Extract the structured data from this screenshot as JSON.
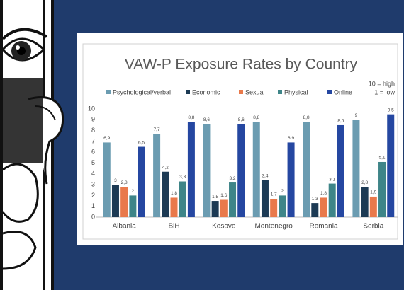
{
  "chart_data": {
    "type": "bar",
    "title": "VAW-P Exposure Rates by Country",
    "annotations": [
      "10 = high",
      "1 = low"
    ],
    "categories": [
      "Albania",
      "BiH",
      "Kosovo",
      "Montenegro",
      "Romania",
      "Serbia"
    ],
    "series": [
      {
        "name": "Psychological/verbal",
        "color": "#6b9cb1",
        "values": [
          6.9,
          7.7,
          8.6,
          8.8,
          8.8,
          9
        ],
        "value_labels": [
          "6,9",
          "7,7",
          "8,6",
          "8,8",
          "8,8",
          "9"
        ]
      },
      {
        "name": "Economic",
        "color": "#1c3a54",
        "values": [
          3,
          4.2,
          1.5,
          3.4,
          1.3,
          2.8
        ],
        "value_labels": [
          "3",
          "4,2",
          "1,5",
          "3,4",
          "1,3",
          "2,8"
        ]
      },
      {
        "name": "Sexual",
        "color": "#e9794b",
        "values": [
          2.8,
          1.8,
          1.6,
          1.7,
          1.8,
          1.9
        ],
        "value_labels": [
          "2,8",
          "1,8",
          "1,6",
          "1,7",
          "1,8",
          "1,9"
        ]
      },
      {
        "name": "Physical",
        "color": "#3e8588",
        "values": [
          2,
          3.3,
          3.2,
          2,
          3.1,
          5.1
        ],
        "value_labels": [
          "2",
          "3,3",
          "3,2",
          "2",
          "3,1",
          "5,1"
        ]
      },
      {
        "name": "Online",
        "color": "#2547a1",
        "values": [
          6.5,
          8.8,
          8.6,
          6.9,
          8.5,
          9.5
        ],
        "value_labels": [
          "6,5",
          "8,8",
          "8,6",
          "6,9",
          "8,5",
          "9,5"
        ]
      }
    ],
    "ylim": [
      0,
      10
    ],
    "yticks": [
      0,
      1,
      2,
      3,
      4,
      5,
      6,
      7,
      8,
      9,
      10
    ],
    "grid": false,
    "legend": "top"
  }
}
